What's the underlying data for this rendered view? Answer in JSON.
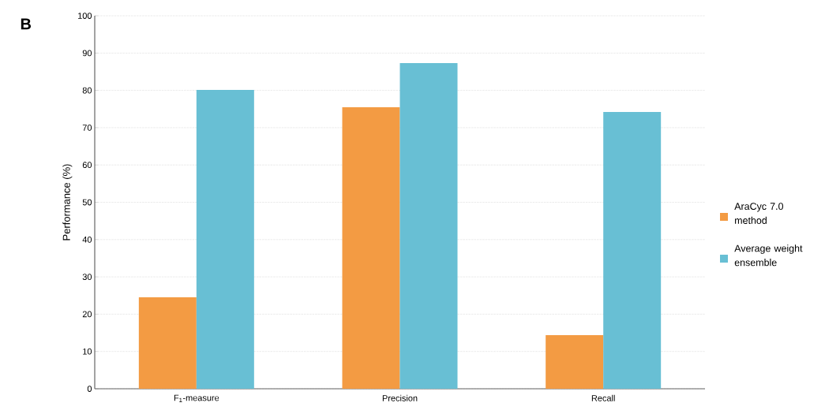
{
  "chart_data": {
    "type": "bar",
    "ylabel": "Performance (%)",
    "annotations": [
      "B"
    ],
    "categories": [
      "F$_{1}$-measure",
      "Precision",
      "Recall"
    ],
    "series": [
      {
        "name": "AraCyc 7.0 method",
        "color": "#f39b43",
        "values": [
          24.5,
          75.5,
          14.4
        ]
      },
      {
        "name": "Average weight ensemble",
        "color": "#68bfd4",
        "values": [
          80.1,
          87.3,
          74.2
        ]
      }
    ],
    "ylim": [
      0,
      100
    ],
    "yticks": [
      0,
      10,
      20,
      30,
      40,
      50,
      60,
      70,
      80,
      90,
      100
    ],
    "grid": "y",
    "legend": "right"
  }
}
